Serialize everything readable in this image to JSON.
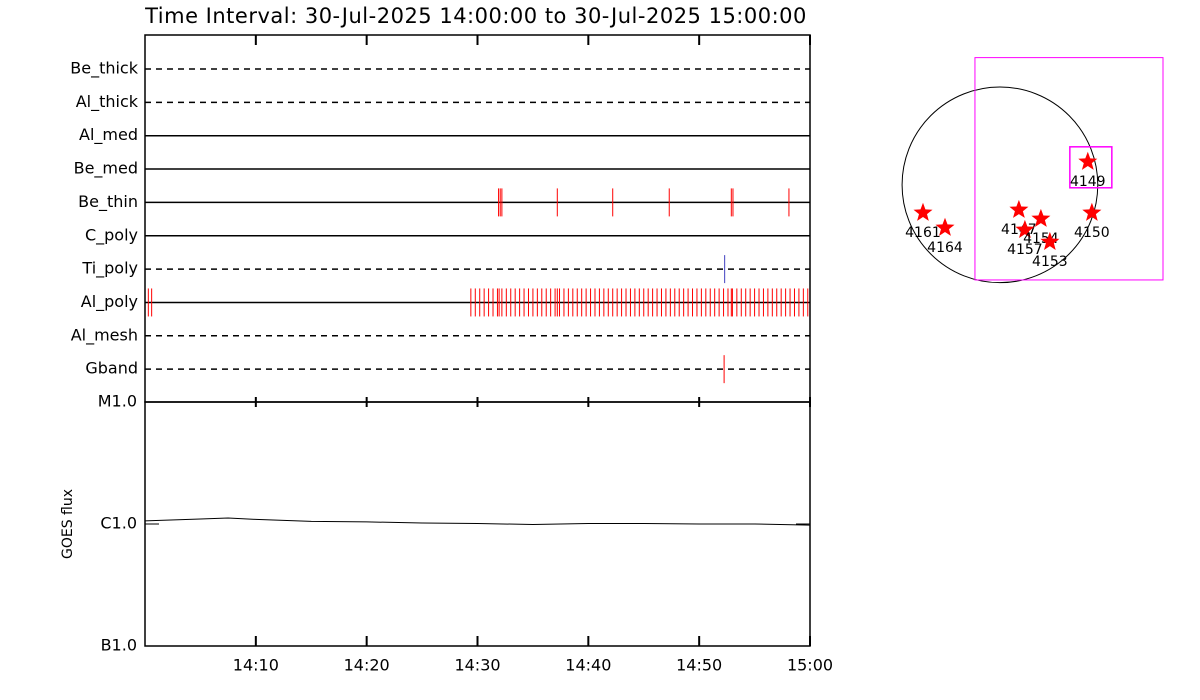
{
  "title": "Time Interval: 30-Jul-2025 14:00:00 to 30-Jul-2025 15:00:00",
  "chart_data": [
    {
      "type": "timeline",
      "xlim": [
        0,
        60
      ],
      "series": [
        {
          "name": "Be_thick",
          "dashed": true,
          "color": "#000000",
          "events": []
        },
        {
          "name": "Al_thick",
          "dashed": true,
          "color": "#000000",
          "events": []
        },
        {
          "name": "Al_med",
          "dashed": false,
          "color": "#000000",
          "events": []
        },
        {
          "name": "Be_med",
          "dashed": false,
          "color": "#000000",
          "events": []
        },
        {
          "name": "Be_thin",
          "dashed": false,
          "color": "#ff0000",
          "events": [
            31.9,
            32.05,
            32.2,
            37.2,
            42.2,
            47.3,
            52.9,
            53.05,
            58.1
          ]
        },
        {
          "name": "C_poly",
          "dashed": false,
          "color": "#000000",
          "events": []
        },
        {
          "name": "Ti_poly",
          "dashed": true,
          "color": "#4040c0",
          "events": [
            52.3
          ]
        },
        {
          "name": "Al_poly",
          "dashed": false,
          "color": "#ff0000",
          "events": [
            0.3,
            0.6,
            29.4,
            29.8,
            30.2,
            30.6,
            31.0,
            31.4,
            31.8,
            31.95,
            32.2,
            32.6,
            33.0,
            33.4,
            33.8,
            34.2,
            34.6,
            35.0,
            35.4,
            35.8,
            36.2,
            36.6,
            37.0,
            37.2,
            37.4,
            37.8,
            38.2,
            38.6,
            39.0,
            39.4,
            39.8,
            40.2,
            40.6,
            41.0,
            41.4,
            41.8,
            42.2,
            42.6,
            43.0,
            43.4,
            43.8,
            44.2,
            44.6,
            45.0,
            45.4,
            45.8,
            46.2,
            46.6,
            47.0,
            47.4,
            47.8,
            48.2,
            48.6,
            49.0,
            49.4,
            49.8,
            50.2,
            50.6,
            51.0,
            51.4,
            51.8,
            52.2,
            52.6,
            52.9,
            53.0,
            53.4,
            53.8,
            54.2,
            54.6,
            55.0,
            55.4,
            55.8,
            56.2,
            56.6,
            57.0,
            57.4,
            57.8,
            58.2,
            58.6,
            59.0,
            59.4,
            59.8
          ]
        },
        {
          "name": "Al_mesh",
          "dashed": true,
          "color": "#000000",
          "events": []
        },
        {
          "name": "Gband",
          "dashed": true,
          "color": "#ff0000",
          "events": [
            52.25
          ]
        }
      ]
    },
    {
      "type": "line",
      "ylabel": "GOES flux",
      "log": true,
      "color": "#000000",
      "xlim": [
        0,
        60
      ],
      "xticks": [
        {
          "value": 10,
          "label": "14:10"
        },
        {
          "value": 20,
          "label": "14:20"
        },
        {
          "value": 30,
          "label": "14:30"
        },
        {
          "value": 40,
          "label": "14:40"
        },
        {
          "value": 50,
          "label": "14:50"
        },
        {
          "value": 60,
          "label": "15:00"
        }
      ],
      "ylim": [
        1e-07,
        1e-05
      ],
      "yticks": [
        {
          "value": 1e-07,
          "label": "B1.0"
        },
        {
          "value": 1e-06,
          "label": "C1.0"
        },
        {
          "value": 1e-05,
          "label": "M1.0"
        }
      ],
      "x": [
        0,
        5,
        7.5,
        10,
        15,
        20,
        25,
        30,
        35,
        40,
        45,
        50,
        55,
        60
      ],
      "values": [
        1.06e-06,
        1.1e-06,
        1.12e-06,
        1.09e-06,
        1.05e-06,
        1.04e-06,
        1.02e-06,
        1.01e-06,
        9.9e-07,
        1.01e-06,
        1.01e-06,
        1e-06,
        1e-06,
        9.8e-07
      ]
    },
    {
      "type": "map",
      "xlim": [
        -1000,
        1600
      ],
      "ylim": [
        -1000,
        1300
      ],
      "radius": 960,
      "fov": [
        {
          "color": "#ff00ff",
          "x0": -245,
          "x1": 1600,
          "y0": -931,
          "y1": 1245
        },
        {
          "color": "#ff00ff",
          "x0": 686,
          "x1": 1098,
          "y0": -29,
          "y1": 372
        }
      ],
      "points": [
        {
          "name": "4161",
          "x": -755,
          "y": -274
        },
        {
          "name": "4164",
          "x": -539,
          "y": -421
        },
        {
          "name": "4147",
          "x": 186,
          "y": -245
        },
        {
          "name": "4157",
          "x": 245,
          "y": -441
        },
        {
          "name": "4154",
          "x": 402,
          "y": -333
        },
        {
          "name": "4153",
          "x": 490,
          "y": -559
        },
        {
          "name": "4149",
          "x": 862,
          "y": 225
        },
        {
          "name": "4150",
          "x": 902,
          "y": -274
        }
      ],
      "color": "#ff0000"
    }
  ]
}
